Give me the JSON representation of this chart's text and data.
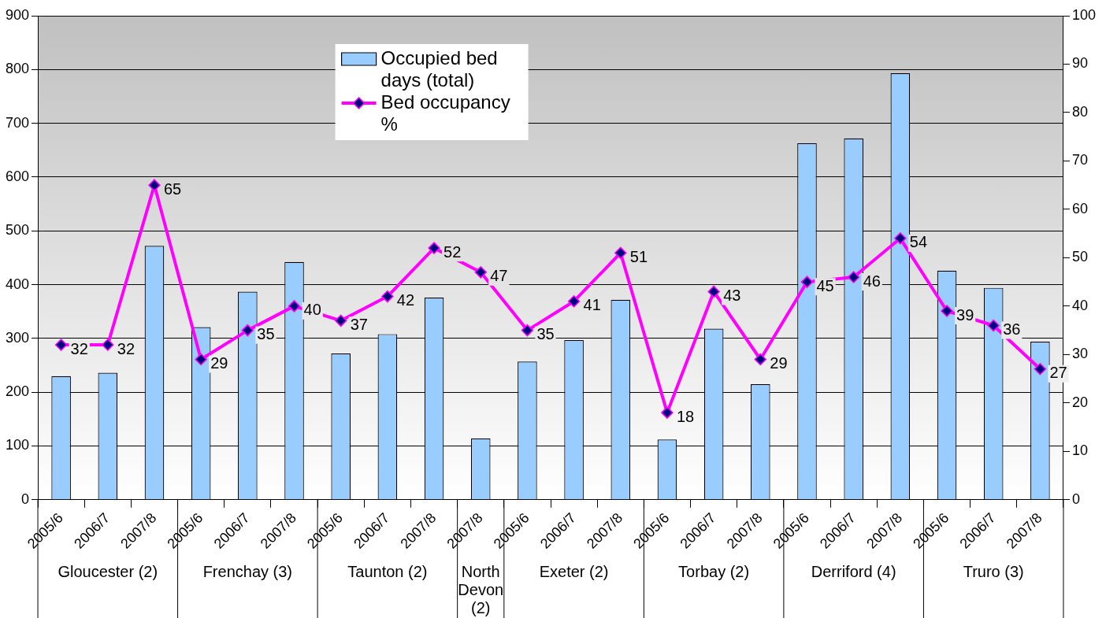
{
  "chart_data": {
    "type": "bar",
    "categories": [
      "2005/6",
      "2006/7",
      "2007/8",
      "2005/6",
      "2006/7",
      "2007/8",
      "2005/6",
      "2006/7",
      "2007/8",
      "2007/8",
      "2005/6",
      "2006/7",
      "2007/8",
      "2005/6",
      "2006/7",
      "2007/8",
      "2005/6",
      "2006/7",
      "2007/8",
      "2005/6",
      "2006/7",
      "2007/8"
    ],
    "series": [
      {
        "name": "Occupied bed days (total)",
        "color": "#99ccff",
        "values": [
          230,
          236,
          472,
          321,
          387,
          442,
          272,
          308,
          376,
          114,
          257,
          297,
          372,
          112,
          318,
          215,
          663,
          672,
          793,
          426,
          394,
          294
        ]
      },
      {
        "name": "Bed occupancy %",
        "type": "line",
        "axis": "y2",
        "color": "#ff00ff",
        "marker": "diamond",
        "values": [
          32,
          32,
          65,
          29,
          35,
          40,
          37,
          42,
          52,
          47,
          35,
          41,
          51,
          18,
          43,
          29,
          45,
          46,
          54,
          39,
          36,
          27
        ],
        "value_labels": [
          "32",
          "32",
          "65",
          "29",
          "35",
          "40",
          "37",
          "42",
          "52",
          "47",
          "35",
          "41",
          "51",
          "18",
          "43",
          "29",
          "45",
          "46",
          "54",
          "39",
          "36",
          "27"
        ]
      }
    ],
    "annotations": [
      "Gloucester (2)",
      "Frenchay (3)",
      "Taunton (2)",
      "North Devon (2)",
      "Exeter (2)",
      "Torbay (2)",
      "Derriford (4)",
      "Truro (3)"
    ],
    "ylim": [
      0,
      900
    ],
    "yticks": [
      0,
      100,
      200,
      300,
      400,
      500,
      600,
      700,
      800,
      900
    ],
    "y2lim": [
      0,
      100
    ],
    "y2ticks": [
      0,
      10,
      20,
      30,
      40,
      50,
      60,
      70,
      80,
      90,
      100
    ],
    "grid": "y",
    "legend": "top"
  }
}
